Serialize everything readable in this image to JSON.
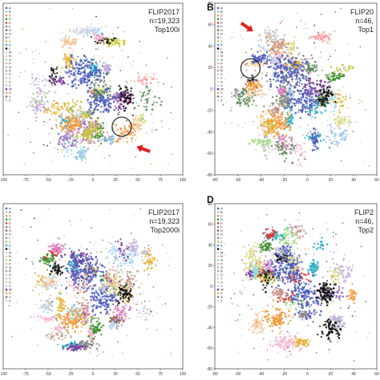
{
  "legend_letters": [
    "A",
    "B",
    "C",
    "D",
    "E",
    "F",
    "G",
    "H",
    "I",
    "J",
    "K",
    "L",
    "M",
    "N",
    "O",
    "P",
    "Q",
    "R",
    "S",
    "T",
    "U",
    "V",
    "W",
    "X",
    "Y",
    "Z"
  ],
  "legend_colors": [
    "#4a5ab8",
    "#9bc2e6",
    "#f29a3a",
    "#3e8e2e",
    "#d63b3b",
    "#8e6bb8",
    "#8a5a3c",
    "#e07fc0",
    "#888888",
    "#c7c73a",
    "#2ab0c8",
    "#111111",
    "#b5d5f0",
    "#f5c89a",
    "#a8dc8c",
    "#f4a3a3",
    "#c4b2dc",
    "#c49c8e",
    "#f7b6d2",
    "#c7c7c7",
    "#dbdb8d",
    "#9edae5",
    "#7a3a9a",
    "#e8b23a",
    "#5a8a5a",
    "#d0d0e8"
  ],
  "panels": [
    {
      "id": "A",
      "letter": "",
      "annotation": [
        "FLIP2017",
        "n=19,323",
        "Top100i"
      ],
      "x_ticks": [
        "-100",
        "-75",
        "-50",
        "-25",
        "0",
        "25",
        "50",
        "75",
        "100"
      ],
      "y_ticks": [],
      "has_arrow": true,
      "has_circle": true
    },
    {
      "id": "B",
      "letter": "B",
      "annotation": [
        "FLIP20",
        "n=46,",
        "Top1"
      ],
      "x_ticks": [
        "-80",
        "-60",
        "-40",
        "-20",
        "0",
        "20",
        "40",
        "60"
      ],
      "y_ticks": [
        "80",
        "60",
        "40",
        "20",
        "0",
        "-20",
        "-40",
        "-60",
        "-80"
      ],
      "has_arrow": true,
      "has_circle": true
    },
    {
      "id": "C",
      "letter": "",
      "annotation": [
        "FLIP2017",
        "n=19,323",
        "Top2000i"
      ],
      "x_ticks": [
        "-100",
        "-75",
        "-50",
        "-25",
        "0",
        "25",
        "50",
        "75",
        "100"
      ],
      "y_ticks": [],
      "has_arrow": false,
      "has_circle": false
    },
    {
      "id": "D",
      "letter": "D",
      "annotation": [
        "FLIP2",
        "n=46,",
        "Top2"
      ],
      "x_ticks": [
        "-80",
        "-60",
        "-40",
        "-20",
        "0",
        "20",
        "40",
        "60"
      ],
      "y_ticks": [
        "80",
        "60",
        "40",
        "20",
        "0",
        "-20",
        "-40",
        "-60",
        "-80"
      ],
      "has_arrow": false,
      "has_circle": false
    }
  ],
  "chart_data": [
    {
      "type": "scatter",
      "panel": "A",
      "title": "",
      "legend": "A–Z letter classes, top-left",
      "xlim": [
        -100,
        100
      ],
      "note": "t-SNE embedding, individual points not readable"
    },
    {
      "type": "scatter",
      "panel": "B",
      "title": "",
      "legend": "A–Z letter classes, top-left",
      "xlim": [
        -80,
        80
      ],
      "ylim": [
        -80,
        80
      ]
    },
    {
      "type": "scatter",
      "panel": "C",
      "title": "",
      "legend": "A–Z letter classes, top-left",
      "xlim": [
        -100,
        100
      ]
    },
    {
      "type": "scatter",
      "panel": "D",
      "title": "",
      "legend": "A–Z letter classes, top-left",
      "xlim": [
        -80,
        80
      ],
      "ylim": [
        -80,
        80
      ]
    }
  ]
}
